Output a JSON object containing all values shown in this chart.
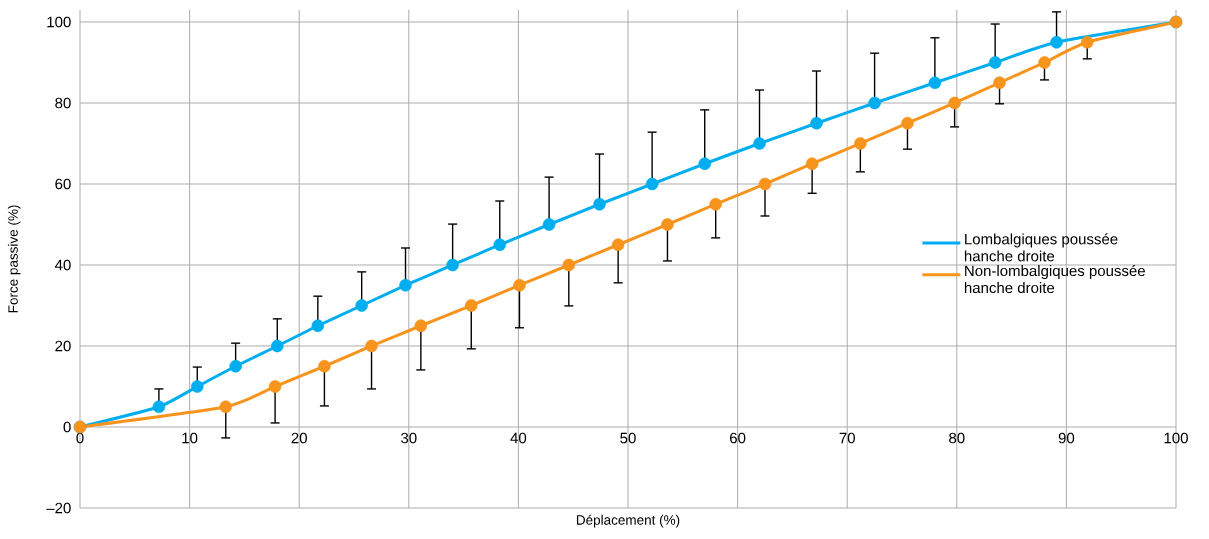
{
  "chart_data": {
    "type": "line",
    "xlabel": "Déplacement (%)",
    "ylabel": "Force passive (%)",
    "xlim": [
      0,
      100
    ],
    "ylim": [
      -20,
      103
    ],
    "xticks": [
      0,
      10,
      20,
      30,
      40,
      50,
      60,
      70,
      80,
      90,
      100
    ],
    "yticks": [
      {
        "value": -20,
        "label": "–20"
      },
      0,
      20,
      40,
      60,
      80,
      100
    ],
    "grid": true,
    "legend": "right",
    "marker": "circle",
    "line_style": "solid",
    "series": [
      {
        "name": "Lombalgiques poussée hanche droite",
        "color": "#00aeef",
        "x": [
          0,
          7.2,
          10.7,
          14.2,
          18.0,
          21.7,
          25.7,
          29.7,
          34.0,
          38.3,
          42.8,
          47.4,
          52.2,
          57.0,
          62.0,
          67.2,
          72.5,
          78.0,
          83.5,
          89.1,
          100
        ],
        "values": [
          0,
          5,
          10,
          15,
          20,
          25,
          30,
          35,
          40,
          45,
          50,
          55,
          60,
          65,
          70,
          75,
          80,
          85,
          90,
          95,
          100
        ],
        "errors": [
          null,
          [
            5,
            9.4
          ],
          [
            10,
            14.8
          ],
          [
            15,
            20.7
          ],
          [
            20,
            26.7
          ],
          [
            25,
            32.3
          ],
          [
            30,
            38.3
          ],
          [
            35,
            44.2
          ],
          [
            40,
            50.1
          ],
          [
            45,
            55.8
          ],
          [
            50,
            61.7
          ],
          [
            55,
            67.4
          ],
          [
            60,
            72.8
          ],
          [
            65,
            78.3
          ],
          [
            70,
            83.2
          ],
          [
            75,
            87.9
          ],
          [
            80,
            92.3
          ],
          [
            85,
            96.1
          ],
          [
            90,
            99.5
          ],
          [
            95,
            102.5
          ],
          null
        ]
      },
      {
        "name": "Non-lombalgiques poussée hanche droite",
        "color": "#f7941d",
        "x": [
          0,
          13.3,
          17.8,
          22.3,
          26.6,
          31.1,
          35.7,
          40.1,
          44.6,
          49.1,
          53.6,
          58.0,
          62.5,
          66.8,
          71.2,
          75.5,
          79.8,
          83.9,
          88.0,
          91.9,
          100
        ],
        "values": [
          0,
          5,
          10,
          15,
          20,
          25,
          30,
          35,
          40,
          45,
          50,
          55,
          60,
          65,
          70,
          75,
          80,
          85,
          90,
          95,
          100
        ],
        "errors": [
          null,
          [
            -2.7,
            5
          ],
          [
            1.0,
            10
          ],
          [
            5.2,
            15
          ],
          [
            9.4,
            20
          ],
          [
            14.1,
            25
          ],
          [
            19.3,
            30
          ],
          [
            24.5,
            35
          ],
          [
            29.9,
            40
          ],
          [
            35.6,
            45
          ],
          [
            41.0,
            50
          ],
          [
            46.7,
            55
          ],
          [
            52.1,
            60
          ],
          [
            57.7,
            65
          ],
          [
            63.0,
            70
          ],
          [
            68.6,
            75
          ],
          [
            74.1,
            80
          ],
          [
            79.8,
            85
          ],
          [
            85.7,
            90
          ],
          [
            90.9,
            95
          ],
          null
        ]
      }
    ]
  }
}
